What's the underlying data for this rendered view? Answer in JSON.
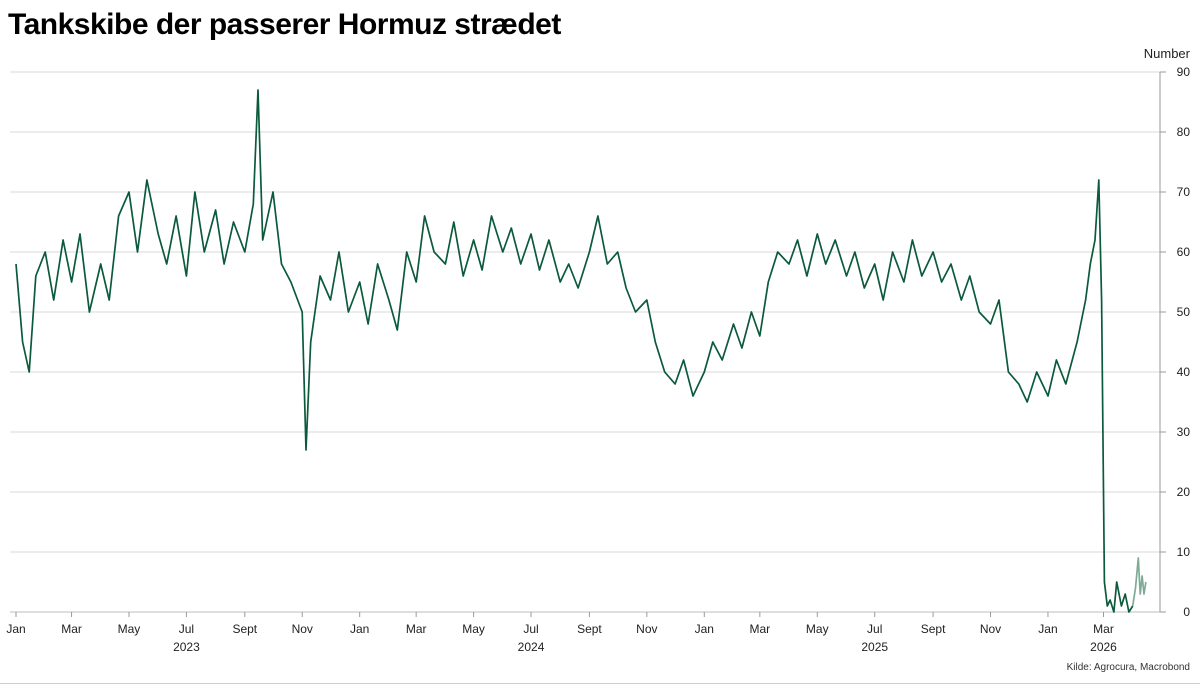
{
  "chart_data": {
    "type": "line",
    "title": "Tankskibe der passerer Hormuz strædet",
    "ylabel": "Number",
    "source": "Kilde: Agrocura, Macrobond",
    "ylim": [
      0,
      90
    ],
    "yticks": [
      0,
      10,
      20,
      30,
      40,
      50,
      60,
      70,
      80,
      90
    ],
    "y_axis_position": "right",
    "grid": "horizontal",
    "xlim": [
      "2023-01-01",
      "2026-04-30"
    ],
    "month_ticks": [
      {
        "label": "Jan",
        "date": "2023-01-01"
      },
      {
        "label": "Mar",
        "date": "2023-03-01"
      },
      {
        "label": "May",
        "date": "2023-05-01"
      },
      {
        "label": "Jul",
        "date": "2023-07-01"
      },
      {
        "label": "Sept",
        "date": "2023-09-01"
      },
      {
        "label": "Nov",
        "date": "2023-11-01"
      },
      {
        "label": "Jan",
        "date": "2024-01-01"
      },
      {
        "label": "Mar",
        "date": "2024-03-01"
      },
      {
        "label": "May",
        "date": "2024-05-01"
      },
      {
        "label": "Jul",
        "date": "2024-07-01"
      },
      {
        "label": "Sept",
        "date": "2024-09-01"
      },
      {
        "label": "Nov",
        "date": "2024-11-01"
      },
      {
        "label": "Jan",
        "date": "2025-01-01"
      },
      {
        "label": "Mar",
        "date": "2025-03-01"
      },
      {
        "label": "May",
        "date": "2025-05-01"
      },
      {
        "label": "Jul",
        "date": "2025-07-01"
      },
      {
        "label": "Sept",
        "date": "2025-09-01"
      },
      {
        "label": "Nov",
        "date": "2025-11-01"
      },
      {
        "label": "Jan",
        "date": "2026-01-01"
      },
      {
        "label": "Mar",
        "date": "2026-03-01"
      }
    ],
    "year_labels": [
      {
        "label": "2023",
        "date": "2023-07-01"
      },
      {
        "label": "2024",
        "date": "2024-07-01"
      },
      {
        "label": "2025",
        "date": "2025-07-01"
      },
      {
        "label": "2026",
        "date": "2026-03-01"
      }
    ],
    "series": [
      {
        "color": "#0b5a3c",
        "points": [
          [
            "2023-01-01",
            58
          ],
          [
            "2023-01-08",
            45
          ],
          [
            "2023-01-15",
            40
          ],
          [
            "2023-01-22",
            56
          ],
          [
            "2023-02-01",
            60
          ],
          [
            "2023-02-10",
            52
          ],
          [
            "2023-02-20",
            62
          ],
          [
            "2023-03-01",
            55
          ],
          [
            "2023-03-10",
            63
          ],
          [
            "2023-03-20",
            50
          ],
          [
            "2023-04-01",
            58
          ],
          [
            "2023-04-10",
            52
          ],
          [
            "2023-04-20",
            66
          ],
          [
            "2023-05-01",
            70
          ],
          [
            "2023-05-10",
            60
          ],
          [
            "2023-05-20",
            72
          ],
          [
            "2023-06-01",
            63
          ],
          [
            "2023-06-10",
            58
          ],
          [
            "2023-06-20",
            66
          ],
          [
            "2023-07-01",
            56
          ],
          [
            "2023-07-10",
            70
          ],
          [
            "2023-07-20",
            60
          ],
          [
            "2023-08-01",
            67
          ],
          [
            "2023-08-10",
            58
          ],
          [
            "2023-08-20",
            65
          ],
          [
            "2023-09-01",
            60
          ],
          [
            "2023-09-10",
            68
          ],
          [
            "2023-09-15",
            87
          ],
          [
            "2023-09-20",
            62
          ],
          [
            "2023-10-01",
            70
          ],
          [
            "2023-10-10",
            58
          ],
          [
            "2023-10-20",
            55
          ],
          [
            "2023-11-01",
            50
          ],
          [
            "2023-11-05",
            27
          ],
          [
            "2023-11-10",
            45
          ],
          [
            "2023-11-20",
            56
          ],
          [
            "2023-12-01",
            52
          ],
          [
            "2023-12-10",
            60
          ],
          [
            "2023-12-20",
            50
          ],
          [
            "2024-01-01",
            55
          ],
          [
            "2024-01-10",
            48
          ],
          [
            "2024-01-20",
            58
          ],
          [
            "2024-02-01",
            52
          ],
          [
            "2024-02-10",
            47
          ],
          [
            "2024-02-20",
            60
          ],
          [
            "2024-03-01",
            55
          ],
          [
            "2024-03-10",
            66
          ],
          [
            "2024-03-20",
            60
          ],
          [
            "2024-04-01",
            58
          ],
          [
            "2024-04-10",
            65
          ],
          [
            "2024-04-20",
            56
          ],
          [
            "2024-05-01",
            62
          ],
          [
            "2024-05-10",
            57
          ],
          [
            "2024-05-20",
            66
          ],
          [
            "2024-06-01",
            60
          ],
          [
            "2024-06-10",
            64
          ],
          [
            "2024-06-20",
            58
          ],
          [
            "2024-07-01",
            63
          ],
          [
            "2024-07-10",
            57
          ],
          [
            "2024-07-20",
            62
          ],
          [
            "2024-08-01",
            55
          ],
          [
            "2024-08-10",
            58
          ],
          [
            "2024-08-20",
            54
          ],
          [
            "2024-09-01",
            60
          ],
          [
            "2024-09-10",
            66
          ],
          [
            "2024-09-20",
            58
          ],
          [
            "2024-10-01",
            60
          ],
          [
            "2024-10-10",
            54
          ],
          [
            "2024-10-20",
            50
          ],
          [
            "2024-11-01",
            52
          ],
          [
            "2024-11-10",
            45
          ],
          [
            "2024-11-20",
            40
          ],
          [
            "2024-12-01",
            38
          ],
          [
            "2024-12-10",
            42
          ],
          [
            "2024-12-20",
            36
          ],
          [
            "2025-01-01",
            40
          ],
          [
            "2025-01-10",
            45
          ],
          [
            "2025-01-20",
            42
          ],
          [
            "2025-02-01",
            48
          ],
          [
            "2025-02-10",
            44
          ],
          [
            "2025-02-20",
            50
          ],
          [
            "2025-03-01",
            46
          ],
          [
            "2025-03-10",
            55
          ],
          [
            "2025-03-20",
            60
          ],
          [
            "2025-04-01",
            58
          ],
          [
            "2025-04-10",
            62
          ],
          [
            "2025-04-20",
            56
          ],
          [
            "2025-05-01",
            63
          ],
          [
            "2025-05-10",
            58
          ],
          [
            "2025-05-20",
            62
          ],
          [
            "2025-06-01",
            56
          ],
          [
            "2025-06-10",
            60
          ],
          [
            "2025-06-20",
            54
          ],
          [
            "2025-07-01",
            58
          ],
          [
            "2025-07-10",
            52
          ],
          [
            "2025-07-20",
            60
          ],
          [
            "2025-08-01",
            55
          ],
          [
            "2025-08-10",
            62
          ],
          [
            "2025-08-20",
            56
          ],
          [
            "2025-09-01",
            60
          ],
          [
            "2025-09-10",
            55
          ],
          [
            "2025-09-20",
            58
          ],
          [
            "2025-10-01",
            52
          ],
          [
            "2025-10-10",
            56
          ],
          [
            "2025-10-20",
            50
          ],
          [
            "2025-11-01",
            48
          ],
          [
            "2025-11-10",
            52
          ],
          [
            "2025-11-20",
            40
          ],
          [
            "2025-12-01",
            38
          ],
          [
            "2025-12-10",
            35
          ],
          [
            "2025-12-20",
            40
          ],
          [
            "2026-01-01",
            36
          ],
          [
            "2026-01-10",
            42
          ],
          [
            "2026-01-20",
            38
          ],
          [
            "2026-02-01",
            45
          ],
          [
            "2026-02-10",
            52
          ],
          [
            "2026-02-15",
            58
          ],
          [
            "2026-02-20",
            62
          ],
          [
            "2026-02-24",
            72
          ],
          [
            "2026-02-27",
            52
          ],
          [
            "2026-03-02",
            5
          ],
          [
            "2026-03-05",
            1
          ],
          [
            "2026-03-08",
            2
          ],
          [
            "2026-03-12",
            0
          ],
          [
            "2026-03-15",
            5
          ],
          [
            "2026-03-20",
            1
          ],
          [
            "2026-03-24",
            3
          ],
          [
            "2026-03-28",
            0
          ],
          [
            "2026-04-01",
            1
          ]
        ]
      },
      {
        "color": "#7faa97",
        "points": [
          [
            "2026-04-01",
            1
          ],
          [
            "2026-04-04",
            4
          ],
          [
            "2026-04-07",
            9
          ],
          [
            "2026-04-09",
            3
          ],
          [
            "2026-04-11",
            6
          ],
          [
            "2026-04-13",
            3
          ],
          [
            "2026-04-15",
            5
          ]
        ]
      }
    ]
  }
}
